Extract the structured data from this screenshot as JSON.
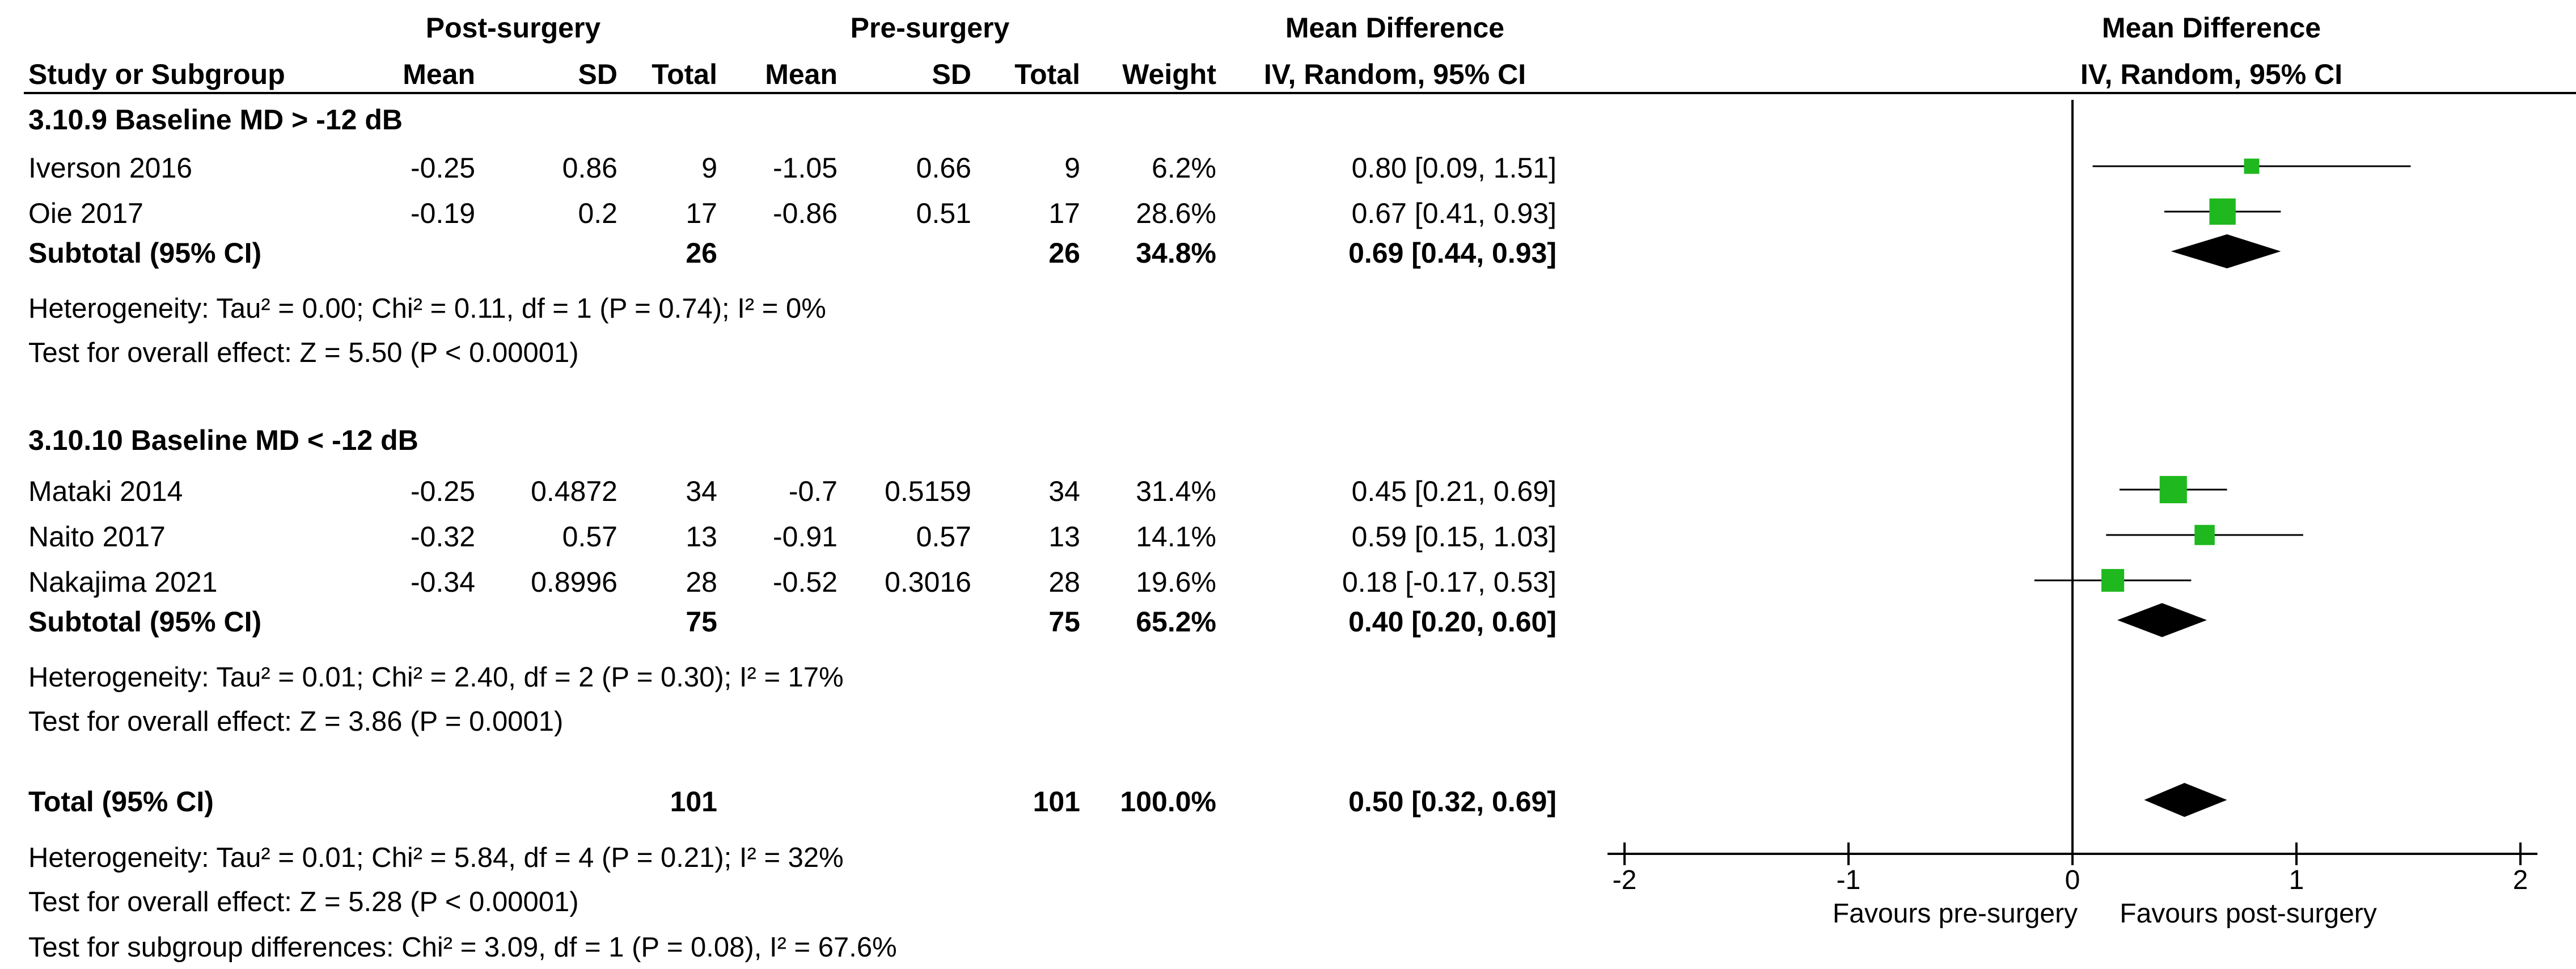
{
  "headers": {
    "post_group": "Post-surgery",
    "pre_group": "Pre-surgery",
    "md_group": "Mean Difference",
    "plot_group": "Mean Difference",
    "study": "Study or Subgroup",
    "post_mean": "Mean",
    "post_sd": "SD",
    "post_total": "Total",
    "pre_mean": "Mean",
    "pre_sd": "SD",
    "pre_total": "Total",
    "weight": "Weight",
    "md_method": "IV, Random, 95% CI",
    "plot_method": "IV, Random, 95% CI"
  },
  "subgroups": [
    {
      "title": "3.10.9 Baseline MD > -12 dB",
      "studies": [
        {
          "study": "Iverson 2016",
          "post_mean": "-0.25",
          "post_sd": "0.86",
          "post_n": "9",
          "pre_mean": "-1.05",
          "pre_sd": "0.66",
          "pre_n": "9",
          "weight": "6.2%",
          "ci": "0.80 [0.09, 1.51]"
        },
        {
          "study": "Oie 2017",
          "post_mean": "-0.19",
          "post_sd": "0.2",
          "post_n": "17",
          "pre_mean": "-0.86",
          "pre_sd": "0.51",
          "pre_n": "17",
          "weight": "28.6%",
          "ci": "0.67 [0.41, 0.93]"
        }
      ],
      "subtotal": {
        "label": "Subtotal (95% CI)",
        "post_n": "26",
        "pre_n": "26",
        "weight": "34.8%",
        "ci": "0.69 [0.44, 0.93]"
      },
      "heterogeneity": "Heterogeneity: Tau² = 0.00; Chi² = 0.11, df = 1 (P = 0.74); I² = 0%",
      "overall": "Test for overall effect: Z = 5.50 (P < 0.00001)"
    },
    {
      "title": "3.10.10 Baseline MD < -12 dB",
      "studies": [
        {
          "study": "Mataki 2014",
          "post_mean": "-0.25",
          "post_sd": "0.4872",
          "post_n": "34",
          "pre_mean": "-0.7",
          "pre_sd": "0.5159",
          "pre_n": "34",
          "weight": "31.4%",
          "ci": "0.45 [0.21, 0.69]"
        },
        {
          "study": "Naito 2017",
          "post_mean": "-0.32",
          "post_sd": "0.57",
          "post_n": "13",
          "pre_mean": "-0.91",
          "pre_sd": "0.57",
          "pre_n": "13",
          "weight": "14.1%",
          "ci": "0.59 [0.15, 1.03]"
        },
        {
          "study": "Nakajima 2021",
          "post_mean": "-0.34",
          "post_sd": "0.8996",
          "post_n": "28",
          "pre_mean": "-0.52",
          "pre_sd": "0.3016",
          "pre_n": "28",
          "weight": "19.6%",
          "ci": "0.18 [-0.17, 0.53]"
        }
      ],
      "subtotal": {
        "label": "Subtotal (95% CI)",
        "post_n": "75",
        "pre_n": "75",
        "weight": "65.2%",
        "ci": "0.40 [0.20, 0.60]"
      },
      "heterogeneity": "Heterogeneity: Tau² = 0.01; Chi² = 2.40, df = 2 (P = 0.30); I² = 17%",
      "overall": "Test for overall effect: Z = 3.86 (P = 0.0001)"
    }
  ],
  "total": {
    "label": "Total (95% CI)",
    "post_n": "101",
    "pre_n": "101",
    "weight": "100.0%",
    "ci": "0.50 [0.32, 0.69]"
  },
  "total_heterogeneity": "Heterogeneity: Tau² = 0.01; Chi² = 5.84, df = 4 (P = 0.21); I² = 32%",
  "total_overall": "Test for overall effect: Z = 5.28 (P < 0.00001)",
  "subgroup_diff": "Test for subgroup differences: Chi² = 3.09, df = 1 (P = 0.08), I² = 67.6%",
  "colors": {
    "marker": "#1fb81f",
    "diamond": "#000000",
    "line": "#000000"
  },
  "chart_data": {
    "type": "forest",
    "title": "Mean Difference IV, Random, 95% CI",
    "xlim": [
      -2,
      2
    ],
    "xticks": [
      -2,
      -1,
      0,
      1,
      2
    ],
    "xtick_labels": [
      "-2",
      "-1",
      "0",
      "1",
      "2"
    ],
    "left_label": "Favours pre-surgery",
    "right_label": "Favours post-surgery",
    "studies": [
      {
        "name": "Iverson 2016",
        "md": 0.8,
        "lo": 0.09,
        "hi": 1.51,
        "weight": 6.2
      },
      {
        "name": "Oie 2017",
        "md": 0.67,
        "lo": 0.41,
        "hi": 0.93,
        "weight": 28.6
      },
      {
        "name": "Mataki 2014",
        "md": 0.45,
        "lo": 0.21,
        "hi": 0.69,
        "weight": 31.4
      },
      {
        "name": "Naito 2017",
        "md": 0.59,
        "lo": 0.15,
        "hi": 1.03,
        "weight": 14.1
      },
      {
        "name": "Nakajima 2021",
        "md": 0.18,
        "lo": -0.17,
        "hi": 0.53,
        "weight": 19.6
      }
    ],
    "pooled": [
      {
        "name": "Subtotal 3.10.9",
        "md": 0.69,
        "lo": 0.44,
        "hi": 0.93
      },
      {
        "name": "Subtotal 3.10.10",
        "md": 0.4,
        "lo": 0.2,
        "hi": 0.6
      },
      {
        "name": "Total",
        "md": 0.5,
        "lo": 0.32,
        "hi": 0.69
      }
    ]
  }
}
